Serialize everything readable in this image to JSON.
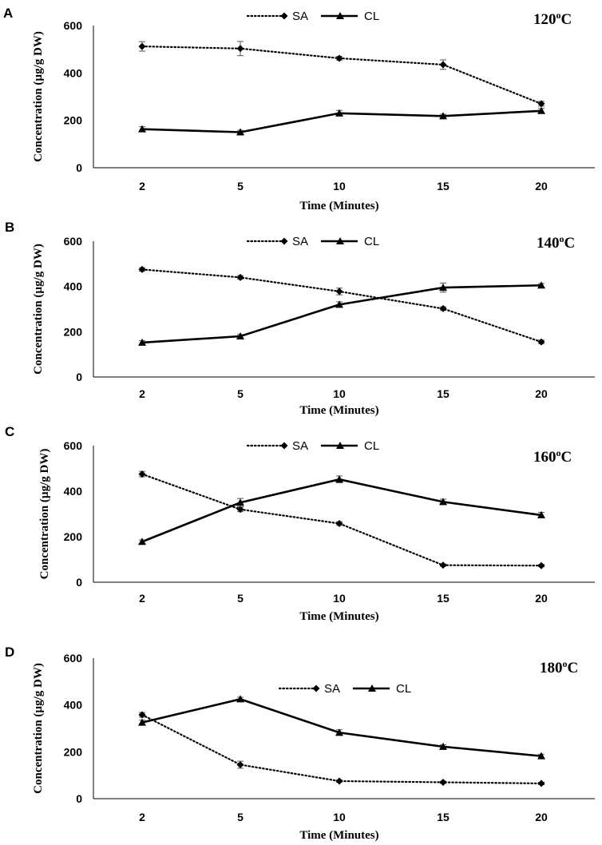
{
  "chart_data": [
    {
      "type": "line",
      "panel_label": "A",
      "title": "120",
      "title_superscript": "o",
      "title_unit": "C",
      "xlabel": "Time (Minutes)",
      "ylabel": "Concentration (µg/g DW)",
      "categories": [
        "2",
        "5",
        "10",
        "15",
        "20"
      ],
      "ylim": [
        0,
        600
      ],
      "yticks": [
        "0",
        "200",
        "400",
        "600"
      ],
      "legend": [
        "SA",
        "CL"
      ],
      "legend_position": "top-center",
      "series": [
        {
          "name": "SA",
          "style": "dotted",
          "marker": "diamond",
          "values": [
            512,
            503,
            462,
            435,
            270
          ],
          "errors": [
            20,
            30,
            8,
            20,
            10
          ]
        },
        {
          "name": "CL",
          "style": "solid",
          "marker": "triangle",
          "values": [
            163,
            150,
            230,
            218,
            240
          ],
          "errors": [
            10,
            8,
            12,
            8,
            10
          ]
        }
      ]
    },
    {
      "type": "line",
      "panel_label": "B",
      "title": "140",
      "title_superscript": "o",
      "title_unit": "C",
      "xlabel": "Time (Minutes)",
      "ylabel": "Concentration (µg/g DW)",
      "categories": [
        "2",
        "5",
        "10",
        "15",
        "20"
      ],
      "ylim": [
        0,
        600
      ],
      "yticks": [
        "0",
        "200",
        "400",
        "600"
      ],
      "legend": [
        "SA",
        "CL"
      ],
      "legend_position": "top-center",
      "series": [
        {
          "name": "SA",
          "style": "dotted",
          "marker": "diamond",
          "values": [
            475,
            440,
            378,
            302,
            155
          ],
          "errors": [
            8,
            8,
            15,
            8,
            8
          ]
        },
        {
          "name": "CL",
          "style": "solid",
          "marker": "triangle",
          "values": [
            152,
            180,
            320,
            395,
            405
          ],
          "errors": [
            8,
            8,
            12,
            20,
            8
          ]
        }
      ]
    },
    {
      "type": "line",
      "panel_label": "C",
      "title": "160",
      "title_superscript": "o",
      "title_unit": "C",
      "xlabel": "Time (Minutes)",
      "ylabel": "Concentration (µg/g DW)",
      "categories": [
        "2",
        "5",
        "10",
        "15",
        "20"
      ],
      "ylim": [
        0,
        600
      ],
      "yticks": [
        "0",
        "200",
        "400",
        "600"
      ],
      "legend": [
        "SA",
        "CL"
      ],
      "legend_position": "top-center",
      "series": [
        {
          "name": "SA",
          "style": "dotted",
          "marker": "diamond",
          "values": [
            475,
            320,
            258,
            75,
            73
          ],
          "errors": [
            12,
            10,
            8,
            5,
            5
          ]
        },
        {
          "name": "CL",
          "style": "solid",
          "marker": "triangle",
          "values": [
            178,
            350,
            452,
            353,
            295
          ],
          "errors": [
            8,
            18,
            15,
            12,
            12
          ]
        }
      ]
    },
    {
      "type": "line",
      "panel_label": "D",
      "title": "180",
      "title_superscript": "o",
      "title_unit": "C",
      "xlabel": "Time (Minutes)",
      "ylabel": "Concentration (µg/g DW)",
      "categories": [
        "2",
        "5",
        "10",
        "15",
        "20"
      ],
      "ylim": [
        0,
        600
      ],
      "yticks": [
        "0",
        "200",
        "400",
        "600"
      ],
      "legend": [
        "SA",
        "CL"
      ],
      "legend_position": "top-center",
      "series": [
        {
          "name": "SA",
          "style": "dotted",
          "marker": "diamond",
          "values": [
            358,
            145,
            75,
            70,
            65
          ],
          "errors": [
            10,
            15,
            5,
            5,
            5
          ]
        },
        {
          "name": "CL",
          "style": "solid",
          "marker": "triangle",
          "values": [
            325,
            425,
            282,
            222,
            182
          ],
          "errors": [
            10,
            8,
            12,
            8,
            8
          ]
        }
      ]
    }
  ]
}
